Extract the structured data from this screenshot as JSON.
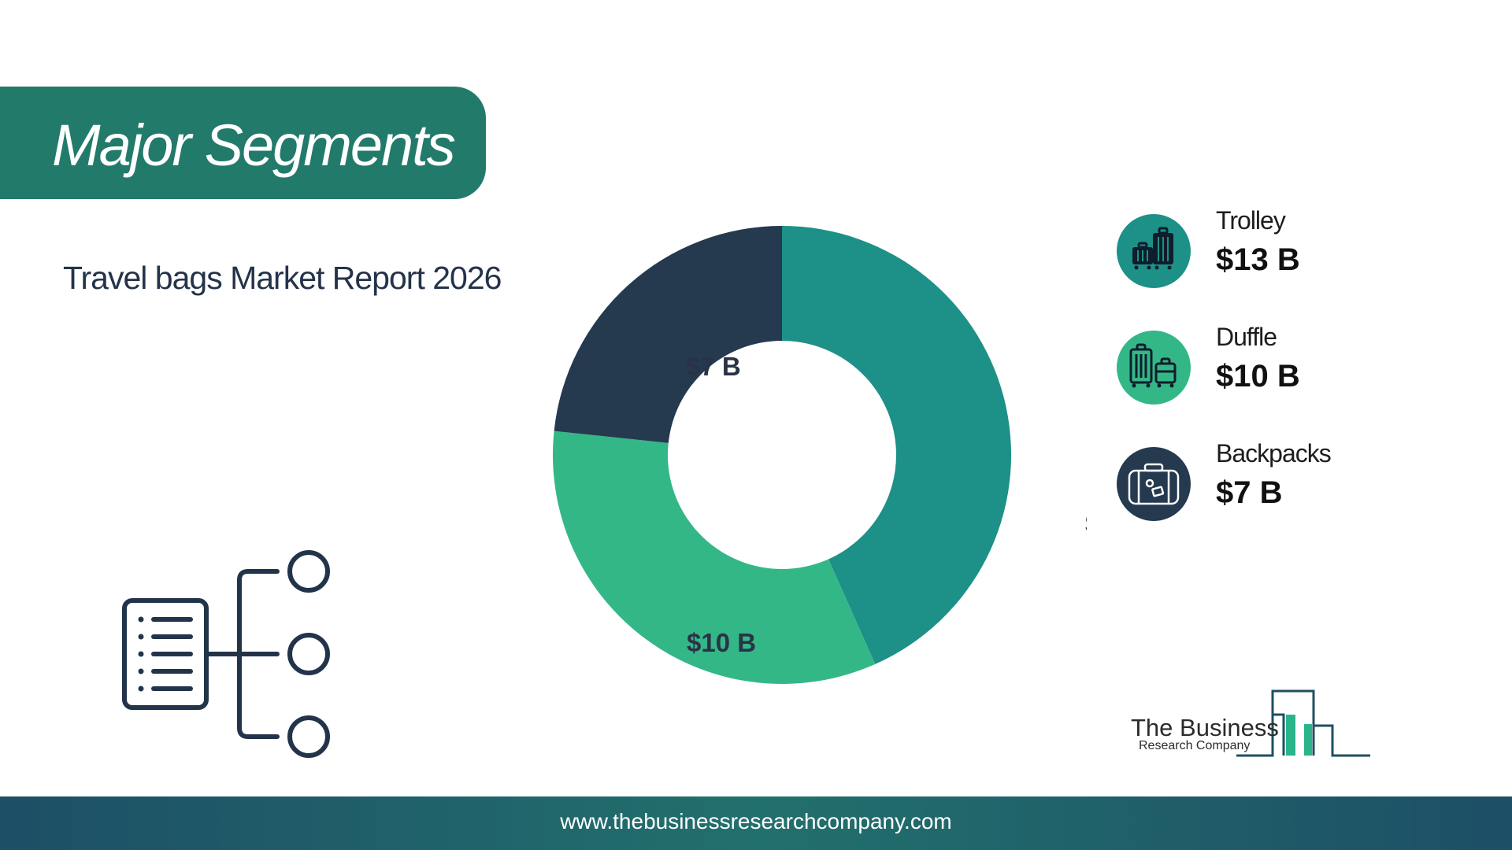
{
  "header": {
    "title": "Major Segments"
  },
  "subtitle": "Travel bags Market Report 2026",
  "chart_data": {
    "type": "pie",
    "categories": [
      "Trolley",
      "Duffle",
      "Backpacks"
    ],
    "values": [
      13,
      10,
      7
    ],
    "labels": [
      "$13 B",
      "$10 B",
      "$7 B"
    ],
    "donut": true,
    "colors": [
      "#1d9087",
      "#34b787",
      "#25394f"
    ]
  },
  "legend": [
    {
      "name": "Trolley",
      "value": "$13 B",
      "color": "#1d9087",
      "icon": "trolley-luggage-icon"
    },
    {
      "name": "Duffle",
      "value": "$10 B",
      "color": "#34b787",
      "icon": "luggage-set-icon"
    },
    {
      "name": "Backpacks",
      "value": "$7 B",
      "color": "#25394f",
      "icon": "suitcase-icon"
    }
  ],
  "logo": {
    "line1": "The Business",
    "line2": "Research Company"
  },
  "footer": {
    "url": "www.thebusinessresearchcompany.com"
  }
}
